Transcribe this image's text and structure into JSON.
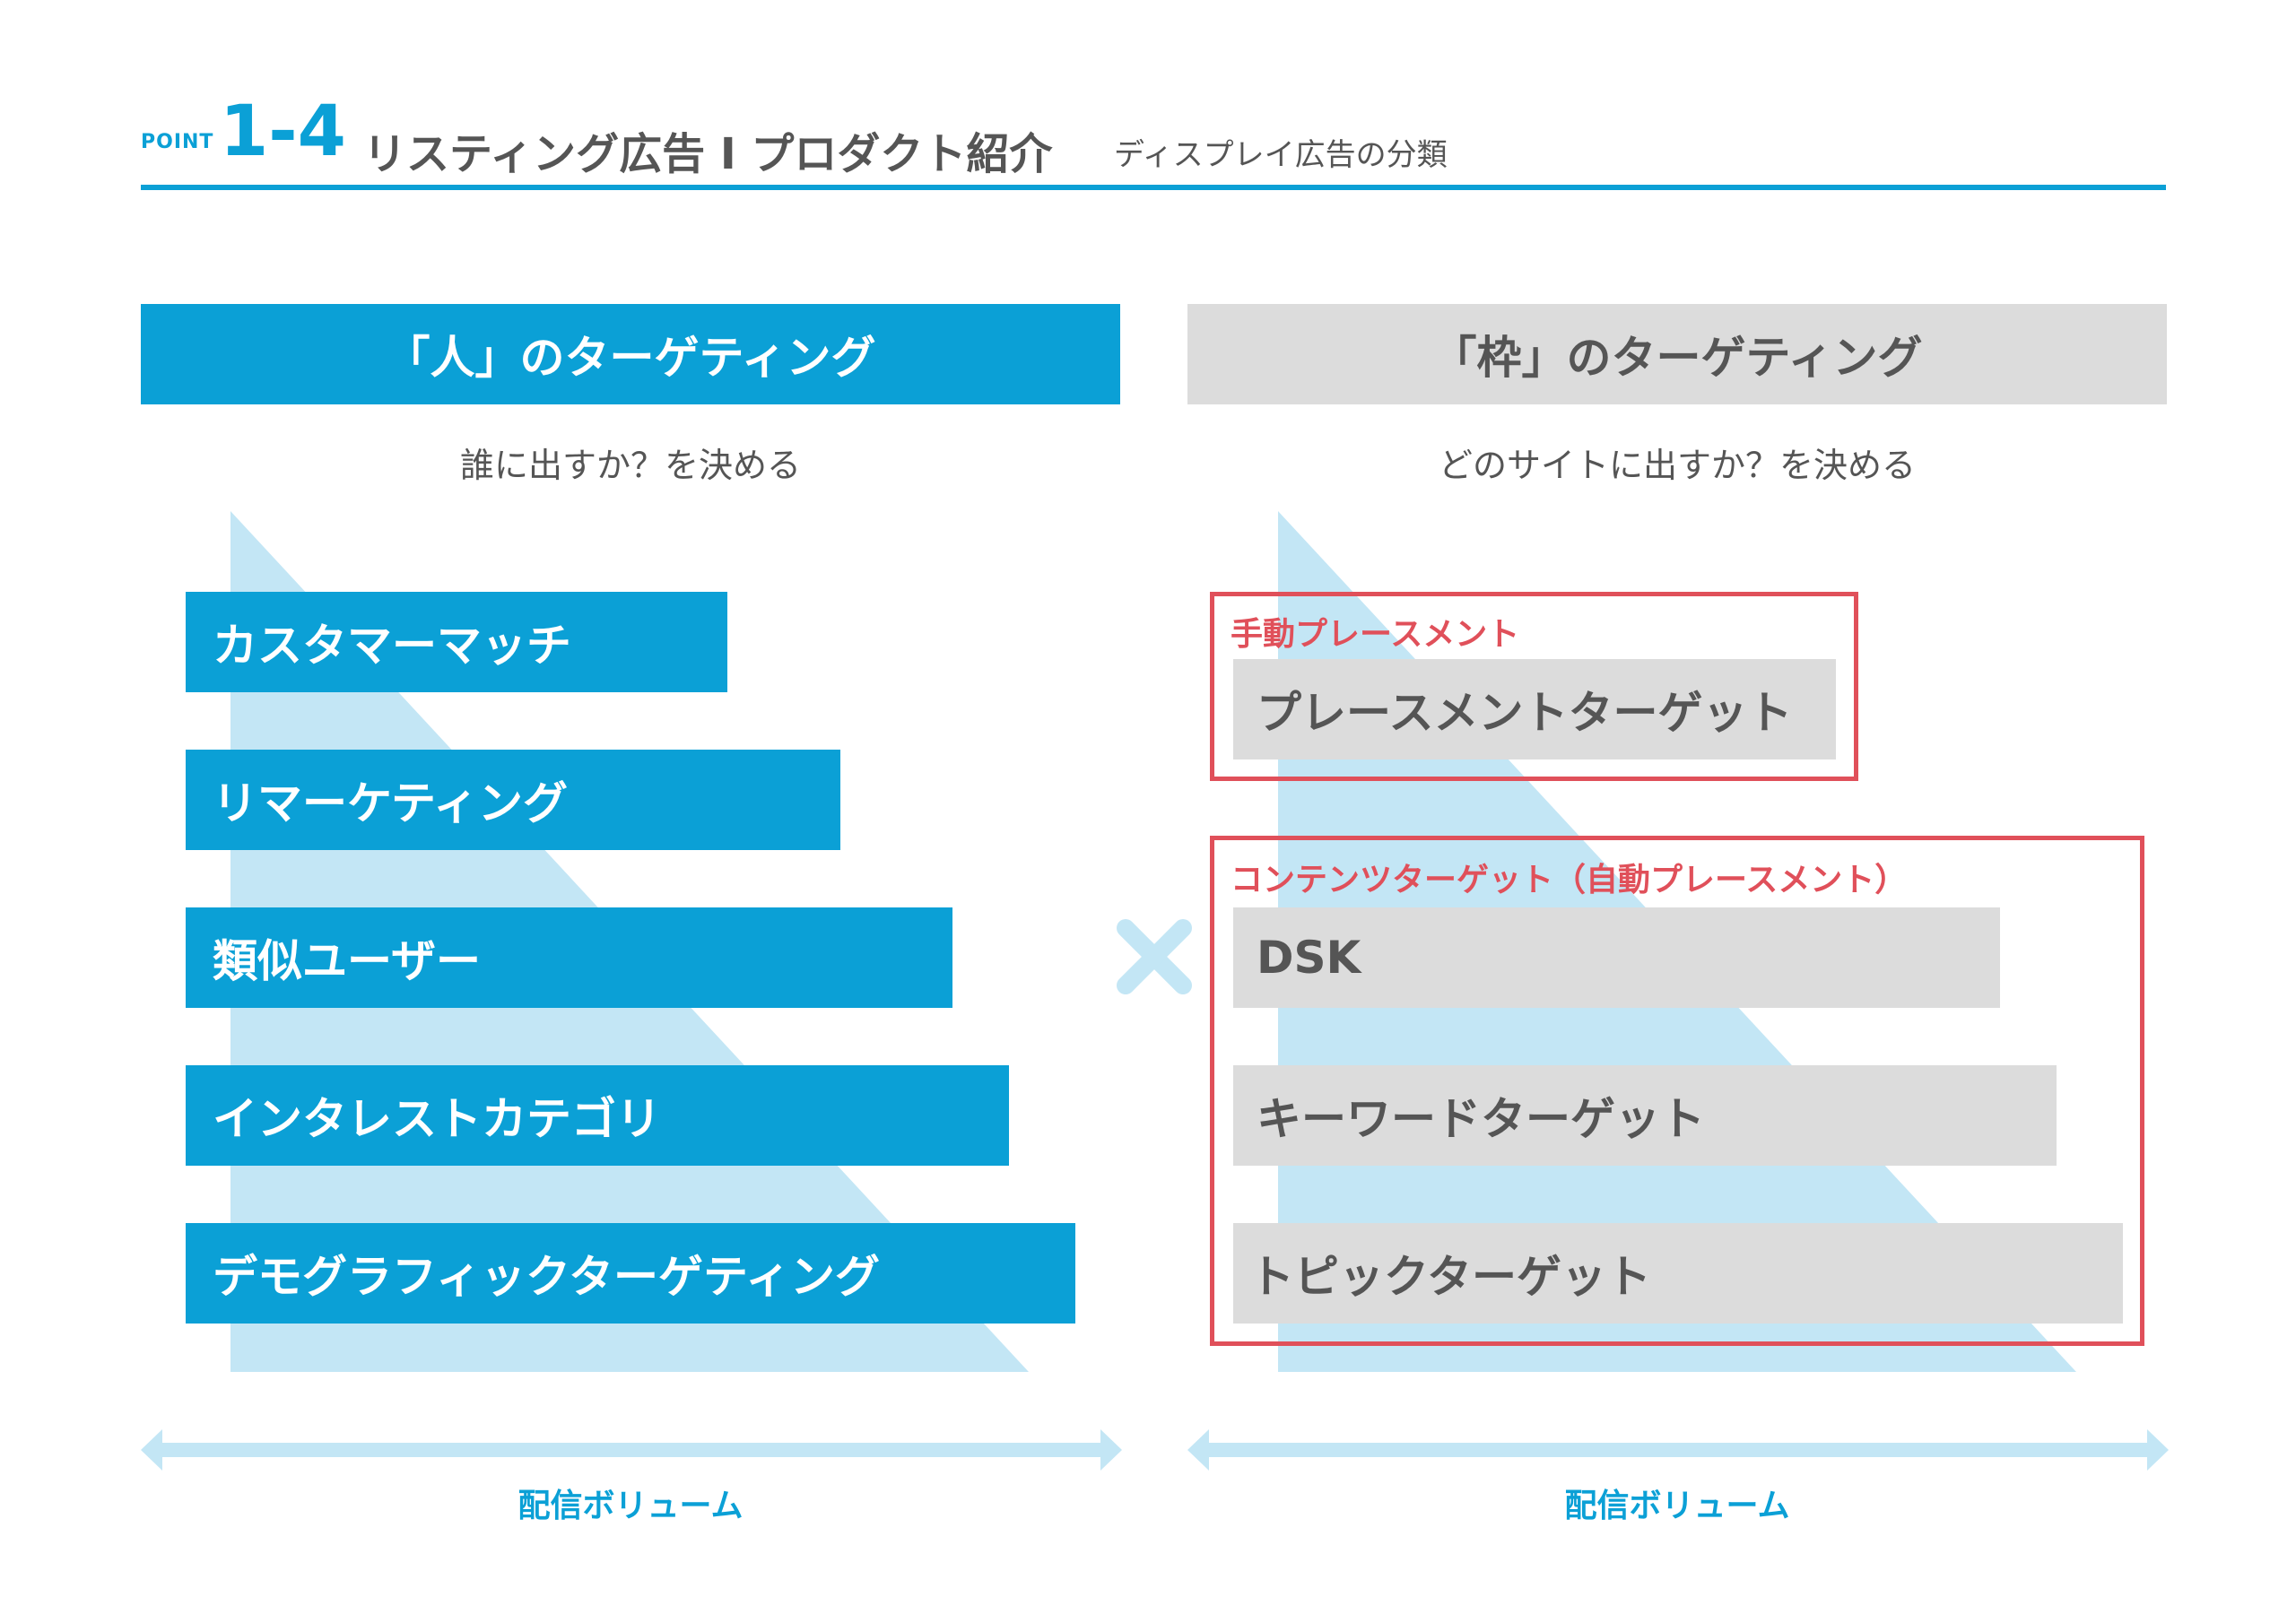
{
  "header": {
    "point_label": "POINT",
    "point_number": "1-4",
    "title": "リスティング広告 I プロダクト紹介",
    "subtitle": "ディスプレイ広告の分類"
  },
  "colors": {
    "accent": "#0ba0d6",
    "light_accent": "#c3e6f5",
    "gray_bar": "#dcdcdc",
    "text": "#555555",
    "red": "#e0505a"
  },
  "left": {
    "header": "「人」のターゲティング",
    "subtext": "誰に出すか？を決める",
    "items": [
      "カスタマーマッチ",
      "リマーケティング",
      "類似ユーザー",
      "インタレストカテゴリ",
      "デモグラフィックターゲティング"
    ],
    "volume_label": "配信ボリューム"
  },
  "right": {
    "header": "「枠」のターゲティング",
    "subtext": "どのサイトに出すか？を決める",
    "manual_label": "手動プレースメント",
    "placement_item": "プレースメントターゲット",
    "content_label": "コンテンツターゲット（自動プレースメント）",
    "content_items": [
      "DSK",
      "キーワードターゲット",
      "トピックターゲット"
    ],
    "volume_label": "配信ボリューム"
  },
  "cross_icon": "times-icon"
}
